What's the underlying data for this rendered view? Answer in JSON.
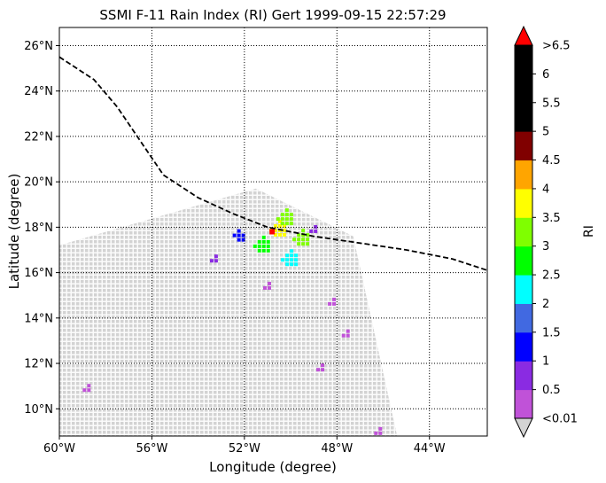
{
  "chart_data": {
    "type": "scatter",
    "title": "SSMI F-11 Rain Index (RI) Gert 1999-09-15 22:57:29",
    "xlabel": "Longitude (degree)",
    "ylabel": "Latitude (degree)",
    "xlim": [
      -60,
      -41.5
    ],
    "ylim": [
      8.8,
      26.8
    ],
    "x_ticks": [
      {
        "value": -60,
        "label": "60°W"
      },
      {
        "value": -56,
        "label": "56°W"
      },
      {
        "value": -52,
        "label": "52°W"
      },
      {
        "value": -48,
        "label": "48°W"
      },
      {
        "value": -44,
        "label": "44°W"
      }
    ],
    "y_ticks": [
      {
        "value": 10,
        "label": "10°N"
      },
      {
        "value": 12,
        "label": "12°N"
      },
      {
        "value": 14,
        "label": "14°N"
      },
      {
        "value": 16,
        "label": "16°N"
      },
      {
        "value": 18,
        "label": "18°N"
      },
      {
        "value": 20,
        "label": "20°N"
      },
      {
        "value": 22,
        "label": "22°N"
      },
      {
        "value": 24,
        "label": "24°N"
      },
      {
        "value": 26,
        "label": "26°N"
      }
    ],
    "grid": "dotted",
    "swath": {
      "no_rain_color": "#d3d3d3",
      "corners": [
        [
          -60,
          17.2
        ],
        [
          -51.5,
          19.7
        ],
        [
          -47.3,
          17.6
        ],
        [
          -45.4,
          8.8
        ],
        [
          -60,
          8.8
        ]
      ]
    },
    "rain_pixels": [
      {
        "lon": -50.5,
        "lat": 17.9,
        "ri": 3.7
      },
      {
        "lon": -50.2,
        "lat": 18.4,
        "ri": 3.2
      },
      {
        "lon": -49.5,
        "lat": 17.5,
        "ri": 3.0
      },
      {
        "lon": -51.2,
        "lat": 17.2,
        "ri": 2.6
      },
      {
        "lon": -50.0,
        "lat": 16.6,
        "ri": 2.4
      },
      {
        "lon": -52.2,
        "lat": 17.6,
        "ri": 1.2
      },
      {
        "lon": -53.3,
        "lat": 16.6,
        "ri": 0.9
      },
      {
        "lon": -49.0,
        "lat": 17.9,
        "ri": 0.6
      },
      {
        "lon": -51.0,
        "lat": 15.4,
        "ri": 0.4
      },
      {
        "lon": -48.2,
        "lat": 14.7,
        "ri": 0.3
      },
      {
        "lon": -47.6,
        "lat": 13.3,
        "ri": 0.2
      },
      {
        "lon": -48.7,
        "lat": 11.8,
        "ri": 0.2
      },
      {
        "lon": -46.2,
        "lat": 9.0,
        "ri": 0.2
      },
      {
        "lon": -58.8,
        "lat": 10.9,
        "ri": 0.2
      }
    ],
    "max_marker": {
      "lon": -50.8,
      "lat": 17.8,
      "color": "#ff0000"
    },
    "track": {
      "style": "dashed",
      "color": "#000000",
      "points": [
        [
          -60,
          25.5
        ],
        [
          -58.5,
          24.5
        ],
        [
          -57.5,
          23.3
        ],
        [
          -56.5,
          21.8
        ],
        [
          -55.5,
          20.3
        ],
        [
          -54,
          19.3
        ],
        [
          -52.5,
          18.6
        ],
        [
          -51,
          18.0
        ],
        [
          -49,
          17.6
        ],
        [
          -47,
          17.3
        ],
        [
          -45,
          17.0
        ],
        [
          -43,
          16.6
        ],
        [
          -41.5,
          16.1
        ]
      ]
    },
    "colorbar": {
      "label": "RI",
      "over_color": "#ff0000",
      "under_color": "#d3d3d3",
      "top_label": ">6.5",
      "bottom_label": "<0.01",
      "levels": [
        {
          "label": "0.5",
          "color": "#c052d8"
        },
        {
          "label": "1",
          "color": "#8a2be2"
        },
        {
          "label": "1.5",
          "color": "#0000ff"
        },
        {
          "label": "2",
          "color": "#4169e1"
        },
        {
          "label": "2.5",
          "color": "#00ffff"
        },
        {
          "label": "3",
          "color": "#00ff00"
        },
        {
          "label": "3.5",
          "color": "#7fff00"
        },
        {
          "label": "4",
          "color": "#ffff00"
        },
        {
          "label": "4.5",
          "color": "#ffa500"
        },
        {
          "label": "5",
          "color": "#800000"
        },
        {
          "label": "5.5",
          "color": "#000000"
        },
        {
          "label": "6",
          "color": "#000000"
        },
        {
          "label": "",
          "color": "#000000"
        }
      ]
    }
  }
}
